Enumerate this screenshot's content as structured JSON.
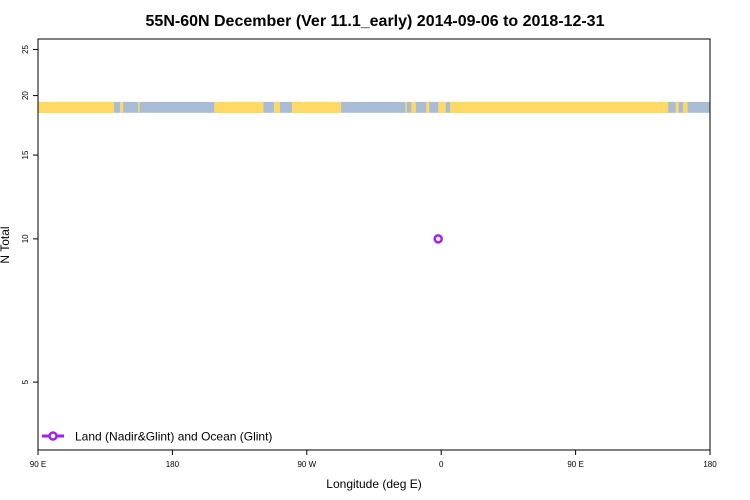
{
  "chart_data": {
    "type": "scatter",
    "title": "55N-60N December (Ver 11.1_early)   2014-09-06 to 2018-12-31",
    "xlabel": "Longitude (deg E)",
    "ylabel": "N Total",
    "x_tick_labels": [
      "90 E",
      "180",
      "90 W",
      "0",
      "90 E",
      "180"
    ],
    "x_tick_values": [
      90,
      180,
      270,
      360,
      450,
      540
    ],
    "xlim": [
      90,
      540
    ],
    "y_tick_values": [
      5,
      10,
      15,
      20,
      25
    ],
    "ylim": [
      3.6,
      26.3
    ],
    "y_scale": "log",
    "series": [
      {
        "name": "Land (Nadir&Glint) and Ocean (Glint)",
        "color": "#a020f0",
        "marker": "open-circle",
        "points": [
          {
            "x": 358,
            "y": 10
          }
        ]
      }
    ],
    "legend_position": "bottom-left",
    "land_ocean_strip": {
      "land_color": "#ffd966",
      "ocean_color": "#a8bcd6",
      "y_range": [
        18.4,
        19.4
      ],
      "land_segments": [
        [
          90,
          141
        ],
        [
          145,
          147
        ],
        [
          157,
          158
        ],
        [
          208,
          241
        ],
        [
          248,
          252
        ],
        [
          260,
          293
        ],
        [
          336,
          337
        ],
        [
          340,
          343
        ],
        [
          350,
          352
        ],
        [
          358,
          363
        ],
        [
          366,
          512
        ],
        [
          517,
          519
        ],
        [
          522,
          525
        ]
      ]
    }
  }
}
